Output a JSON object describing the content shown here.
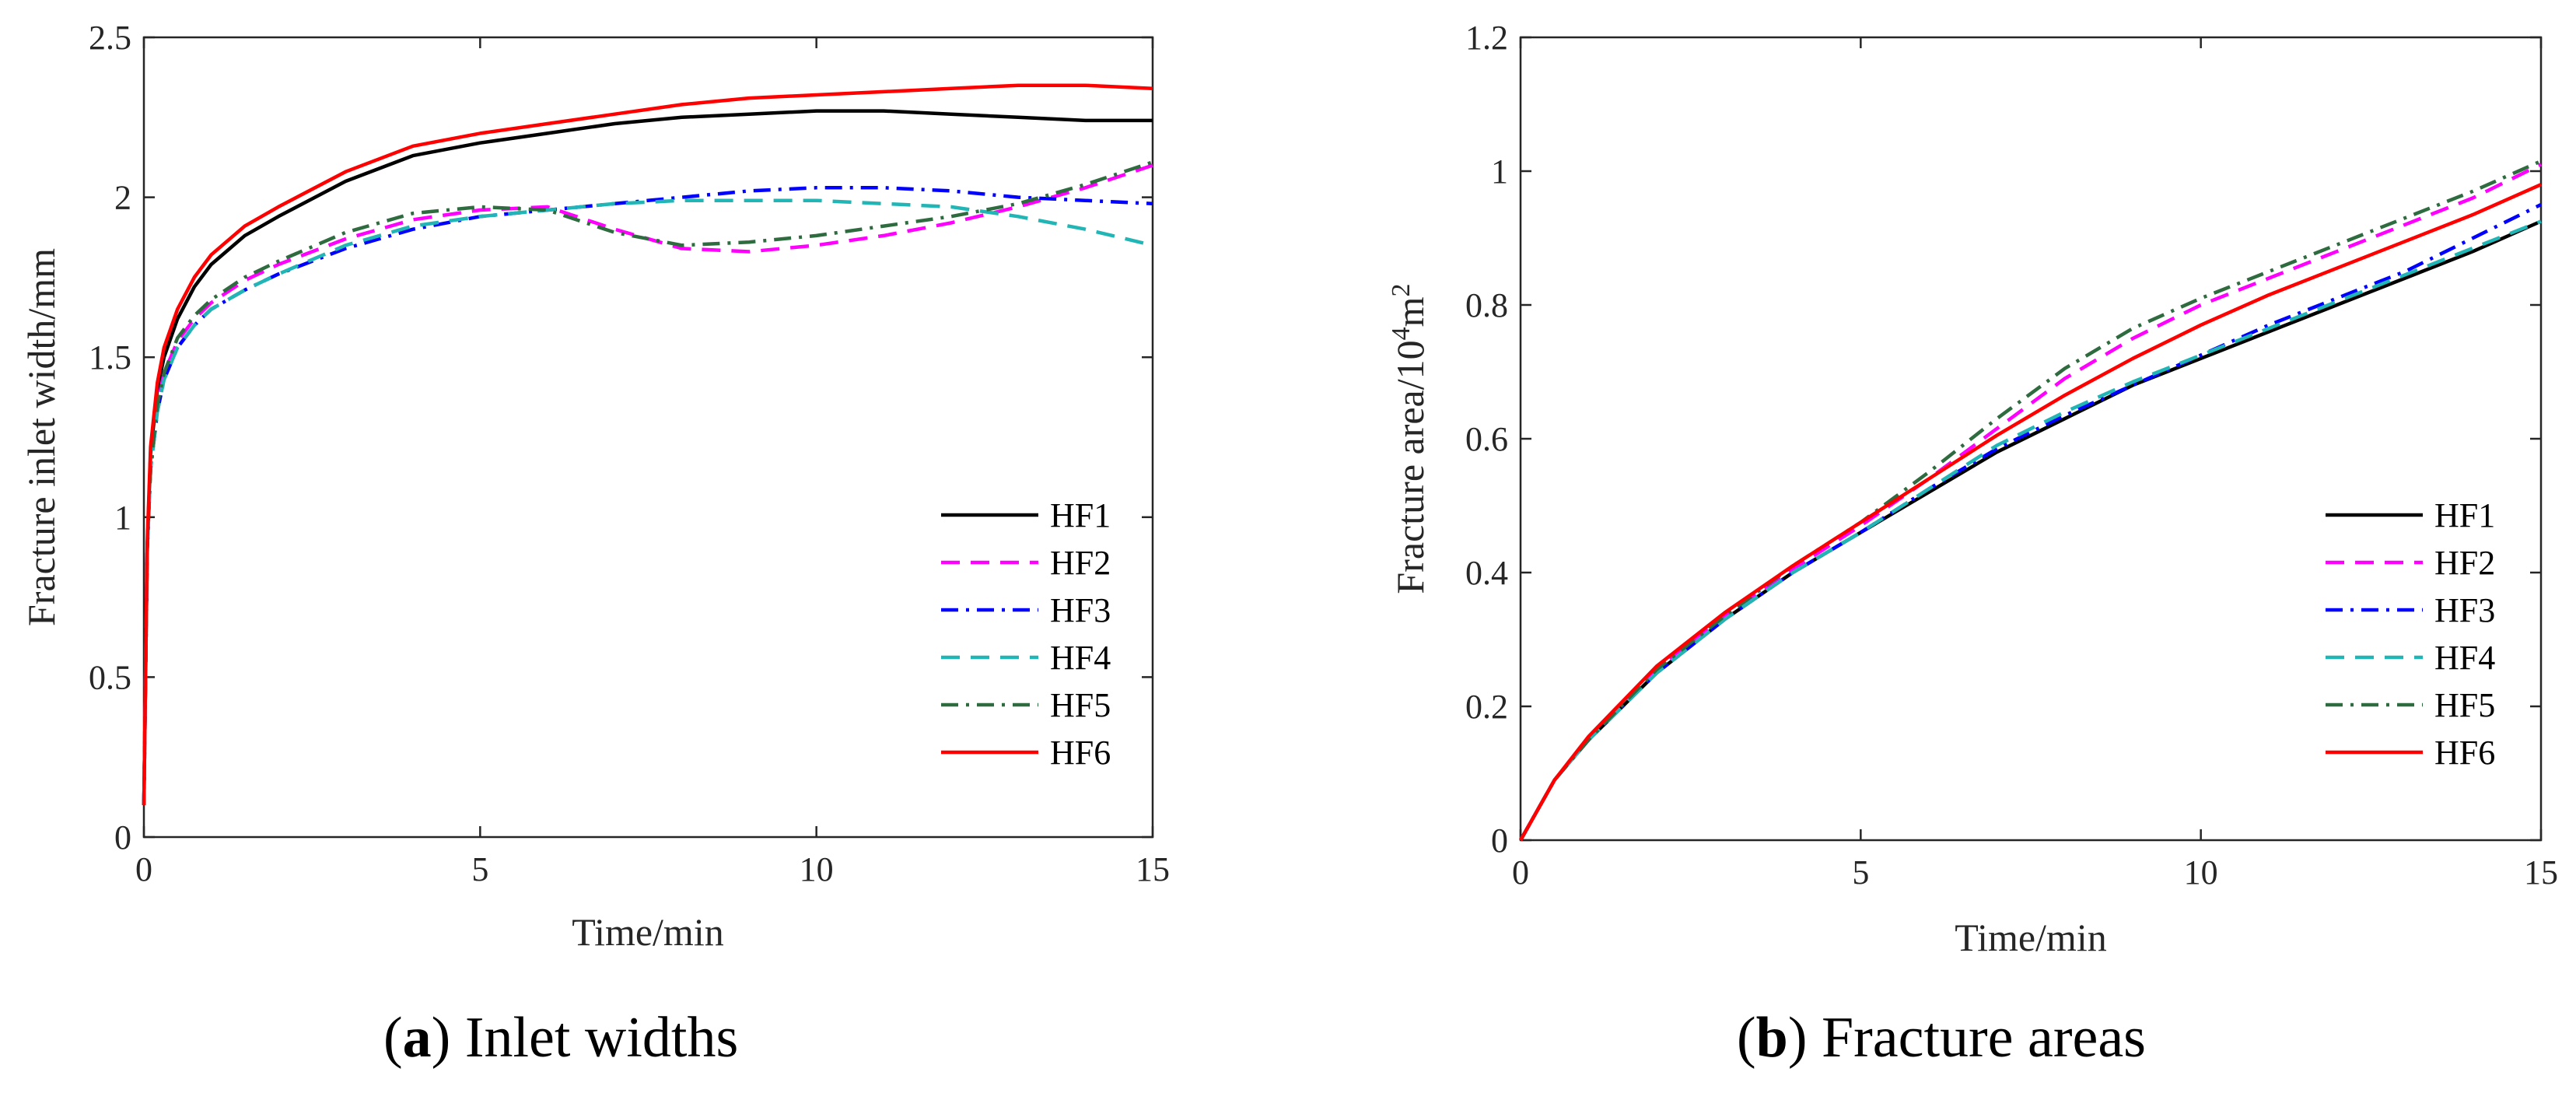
{
  "chart_data": [
    {
      "type": "line",
      "caption_letter": "a",
      "caption_text": "Inlet widths",
      "xlabel": "Time/min",
      "ylabel": "Fracture inlet width/mm",
      "xlim": [
        0,
        15
      ],
      "ylim": [
        0,
        2.5
      ],
      "xticks": [
        "0",
        "5",
        "10",
        "15"
      ],
      "xtick_values": [
        0,
        5,
        10,
        15
      ],
      "yticks": [
        "0",
        "0.5",
        "1",
        "1.5",
        "2",
        "2.5"
      ],
      "ytick_values": [
        0,
        0.5,
        1,
        1.5,
        2,
        2.5
      ],
      "legend_position": "bottom-right",
      "series": [
        {
          "name": "HF1",
          "color": "#000000",
          "dash": "solid",
          "x": [
            0,
            0.05,
            0.1,
            0.2,
            0.3,
            0.5,
            0.75,
            1,
            1.5,
            2,
            3,
            4,
            5,
            6,
            7,
            8,
            9,
            10,
            11,
            12,
            13,
            14,
            15
          ],
          "y": [
            0.1,
            0.9,
            1.2,
            1.4,
            1.5,
            1.62,
            1.72,
            1.79,
            1.88,
            1.94,
            2.05,
            2.13,
            2.17,
            2.2,
            2.23,
            2.25,
            2.26,
            2.27,
            2.27,
            2.26,
            2.25,
            2.24,
            2.24
          ]
        },
        {
          "name": "HF2",
          "color": "#ff00ff",
          "dash": "dashed",
          "x": [
            0,
            0.05,
            0.1,
            0.2,
            0.3,
            0.5,
            0.75,
            1,
            1.5,
            2,
            3,
            4,
            5,
            6,
            7,
            8,
            9,
            10,
            11,
            12,
            13,
            14,
            15
          ],
          "y": [
            0.1,
            0.9,
            1.15,
            1.35,
            1.45,
            1.55,
            1.62,
            1.67,
            1.74,
            1.79,
            1.87,
            1.93,
            1.96,
            1.97,
            1.9,
            1.84,
            1.83,
            1.85,
            1.88,
            1.92,
            1.97,
            2.03,
            2.1
          ]
        },
        {
          "name": "HF3",
          "color": "#0000ff",
          "dash": "dashdot",
          "x": [
            0,
            0.05,
            0.1,
            0.2,
            0.3,
            0.5,
            0.75,
            1,
            1.5,
            2,
            3,
            4,
            5,
            6,
            7,
            8,
            9,
            10,
            11,
            12,
            13,
            14,
            15
          ],
          "y": [
            0.1,
            0.9,
            1.15,
            1.33,
            1.43,
            1.53,
            1.6,
            1.65,
            1.71,
            1.76,
            1.84,
            1.9,
            1.94,
            1.96,
            1.98,
            2.0,
            2.02,
            2.03,
            2.03,
            2.02,
            2.0,
            1.99,
            1.98
          ]
        },
        {
          "name": "HF4",
          "color": "#22b5b5",
          "dash": "dashed",
          "x": [
            0,
            0.05,
            0.1,
            0.2,
            0.3,
            0.5,
            0.75,
            1,
            1.5,
            2,
            3,
            4,
            5,
            6,
            7,
            8,
            9,
            10,
            11,
            12,
            13,
            14,
            15
          ],
          "y": [
            0.1,
            0.9,
            1.15,
            1.33,
            1.43,
            1.53,
            1.6,
            1.65,
            1.71,
            1.76,
            1.85,
            1.91,
            1.94,
            1.96,
            1.98,
            1.99,
            1.99,
            1.99,
            1.98,
            1.97,
            1.94,
            1.9,
            1.85
          ]
        },
        {
          "name": "HF5",
          "color": "#2e6b3f",
          "dash": "dashdot",
          "x": [
            0,
            0.05,
            0.1,
            0.2,
            0.3,
            0.5,
            0.75,
            1,
            1.5,
            2,
            3,
            4,
            5,
            6,
            7,
            8,
            9,
            10,
            11,
            12,
            13,
            14,
            15
          ],
          "y": [
            0.1,
            0.9,
            1.16,
            1.35,
            1.45,
            1.56,
            1.63,
            1.68,
            1.75,
            1.8,
            1.89,
            1.95,
            1.97,
            1.96,
            1.89,
            1.85,
            1.86,
            1.88,
            1.91,
            1.94,
            1.98,
            2.04,
            2.11
          ]
        },
        {
          "name": "HF6",
          "color": "#ff0000",
          "dash": "solid",
          "x": [
            0,
            0.05,
            0.1,
            0.2,
            0.3,
            0.5,
            0.75,
            1,
            1.5,
            2,
            3,
            4,
            5,
            6,
            7,
            8,
            9,
            10,
            11,
            12,
            13,
            14,
            15
          ],
          "y": [
            0.1,
            0.92,
            1.22,
            1.42,
            1.53,
            1.65,
            1.75,
            1.82,
            1.91,
            1.97,
            2.08,
            2.16,
            2.2,
            2.23,
            2.26,
            2.29,
            2.31,
            2.32,
            2.33,
            2.34,
            2.35,
            2.35,
            2.34
          ]
        }
      ]
    },
    {
      "type": "line",
      "caption_letter": "b",
      "caption_text": "Fracture areas",
      "xlabel": "Time/min",
      "ylabel_main": "Fracture area/10",
      "ylabel_sup1": "4",
      "ylabel_mid": "m",
      "ylabel_sup2": "2",
      "xlim": [
        0,
        15
      ],
      "ylim": [
        0,
        1.2
      ],
      "xticks": [
        "0",
        "5",
        "10",
        "15"
      ],
      "xtick_values": [
        0,
        5,
        10,
        15
      ],
      "yticks": [
        "0",
        "0.2",
        "0.4",
        "0.6",
        "0.8",
        "1",
        "1.2"
      ],
      "ytick_values": [
        0,
        0.2,
        0.4,
        0.6,
        0.8,
        1,
        1.2
      ],
      "legend_position": "bottom-right",
      "series": [
        {
          "name": "HF1",
          "color": "#000000",
          "dash": "solid",
          "x": [
            0,
            0.5,
            1,
            2,
            3,
            4,
            5,
            6,
            7,
            8,
            9,
            10,
            11,
            12,
            13,
            14,
            15
          ],
          "y": [
            0,
            0.09,
            0.15,
            0.25,
            0.33,
            0.4,
            0.46,
            0.52,
            0.58,
            0.63,
            0.68,
            0.72,
            0.76,
            0.8,
            0.84,
            0.88,
            0.925
          ]
        },
        {
          "name": "HF2",
          "color": "#ff00ff",
          "dash": "dashed",
          "x": [
            0,
            0.5,
            1,
            2,
            3,
            4,
            5,
            6,
            7,
            8,
            9,
            10,
            11,
            12,
            13,
            14,
            15
          ],
          "y": [
            0,
            0.09,
            0.15,
            0.255,
            0.335,
            0.405,
            0.47,
            0.54,
            0.615,
            0.69,
            0.75,
            0.8,
            0.84,
            0.88,
            0.92,
            0.96,
            1.01
          ]
        },
        {
          "name": "HF3",
          "color": "#0000ff",
          "dash": "dashdot",
          "x": [
            0,
            0.5,
            1,
            2,
            3,
            4,
            5,
            6,
            7,
            8,
            9,
            10,
            11,
            12,
            13,
            14,
            15
          ],
          "y": [
            0,
            0.09,
            0.15,
            0.25,
            0.33,
            0.4,
            0.46,
            0.525,
            0.585,
            0.635,
            0.68,
            0.725,
            0.77,
            0.81,
            0.85,
            0.9,
            0.95
          ]
        },
        {
          "name": "HF4",
          "color": "#22b5b5",
          "dash": "dashed",
          "x": [
            0,
            0.5,
            1,
            2,
            3,
            4,
            5,
            6,
            7,
            8,
            9,
            10,
            11,
            12,
            13,
            14,
            15
          ],
          "y": [
            0,
            0.09,
            0.15,
            0.25,
            0.33,
            0.4,
            0.46,
            0.525,
            0.59,
            0.64,
            0.685,
            0.725,
            0.765,
            0.805,
            0.845,
            0.885,
            0.925
          ]
        },
        {
          "name": "HF5",
          "color": "#2e6b3f",
          "dash": "dashdot",
          "x": [
            0,
            0.5,
            1,
            2,
            3,
            4,
            5,
            6,
            7,
            8,
            9,
            10,
            11,
            12,
            13,
            14,
            15
          ],
          "y": [
            0,
            0.09,
            0.15,
            0.255,
            0.335,
            0.41,
            0.475,
            0.55,
            0.63,
            0.705,
            0.765,
            0.81,
            0.85,
            0.89,
            0.93,
            0.97,
            1.015
          ]
        },
        {
          "name": "HF6",
          "color": "#ff0000",
          "dash": "solid",
          "x": [
            0,
            0.5,
            1,
            2,
            3,
            4,
            5,
            6,
            7,
            8,
            9,
            10,
            11,
            12,
            13,
            14,
            15
          ],
          "y": [
            0,
            0.09,
            0.155,
            0.26,
            0.34,
            0.41,
            0.475,
            0.54,
            0.605,
            0.665,
            0.72,
            0.77,
            0.815,
            0.855,
            0.895,
            0.935,
            0.98
          ]
        }
      ]
    }
  ]
}
